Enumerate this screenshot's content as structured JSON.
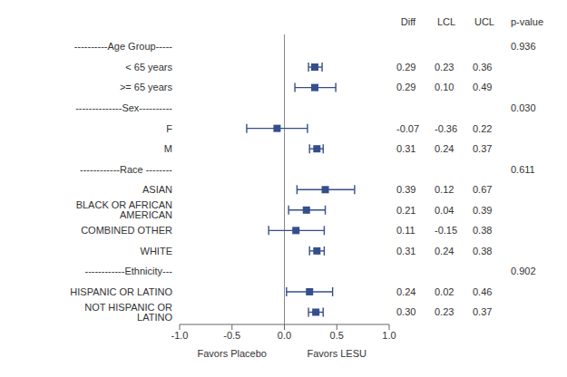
{
  "chart_data": {
    "type": "forest",
    "categories": [
      "----------Age Group-----",
      "< 65 years",
      ">= 65 years",
      "--------------Sex----------",
      "F",
      "M",
      "------------Race --------",
      "ASIAN",
      "BLACK OR AFRICAN AMERICAN",
      "COMBINED OTHER",
      "WHITE",
      "------------Ethnicity---",
      "HISPANIC OR LATINO",
      "NOT HISPANIC OR LATINO"
    ],
    "values": [
      null,
      0.29,
      0.29,
      null,
      -0.07,
      0.31,
      null,
      0.39,
      0.21,
      0.11,
      0.31,
      null,
      0.24,
      0.3
    ],
    "value_labels": [
      null,
      "0.29",
      "0.29",
      null,
      "-0.07",
      "0.31",
      null,
      "0.39",
      "0.21",
      "0.11",
      "0.31",
      null,
      "0.24",
      "0.30"
    ],
    "lcl": [
      null,
      0.23,
      0.1,
      null,
      -0.36,
      0.24,
      null,
      0.12,
      0.04,
      -0.15,
      0.24,
      null,
      0.02,
      0.23
    ],
    "lcl_labels": [
      null,
      "0.23",
      "0.10",
      null,
      "-0.36",
      "0.24",
      null,
      "0.12",
      "0.04",
      "-0.15",
      "0.24",
      null,
      "0.02",
      "0.23"
    ],
    "ucl": [
      null,
      0.36,
      0.49,
      null,
      0.22,
      0.37,
      null,
      0.67,
      0.39,
      0.38,
      0.38,
      null,
      0.46,
      0.37
    ],
    "ucl_labels": [
      null,
      "0.36",
      "0.49",
      null,
      "0.22",
      "0.37",
      null,
      "0.67",
      "0.39",
      "0.38",
      "0.38",
      null,
      "0.46",
      "0.37"
    ],
    "pvalues": [
      0.936,
      null,
      null,
      0.03,
      null,
      null,
      0.611,
      null,
      null,
      null,
      null,
      0.902,
      null,
      null
    ],
    "pvalue_labels": [
      "0.936",
      null,
      null,
      "0.030",
      null,
      null,
      "0.611",
      null,
      null,
      null,
      null,
      "0.902",
      null,
      null
    ],
    "columns": [
      "Diff",
      "LCL",
      "UCL",
      "p-value"
    ],
    "annotations": [
      "Favors Placebo",
      "Favors LESU"
    ],
    "xlim": [
      -1.0,
      1.0
    ],
    "xticks": [
      {
        "value": -1.0,
        "label": "-1.0"
      },
      -0.5,
      {
        "value": 0.0,
        "label": "0.0"
      },
      0.5,
      {
        "value": 1.0,
        "label": "1.0"
      }
    ],
    "reference_x": 0.0,
    "color": "#354E8C",
    "marker": "square",
    "grid": false
  }
}
